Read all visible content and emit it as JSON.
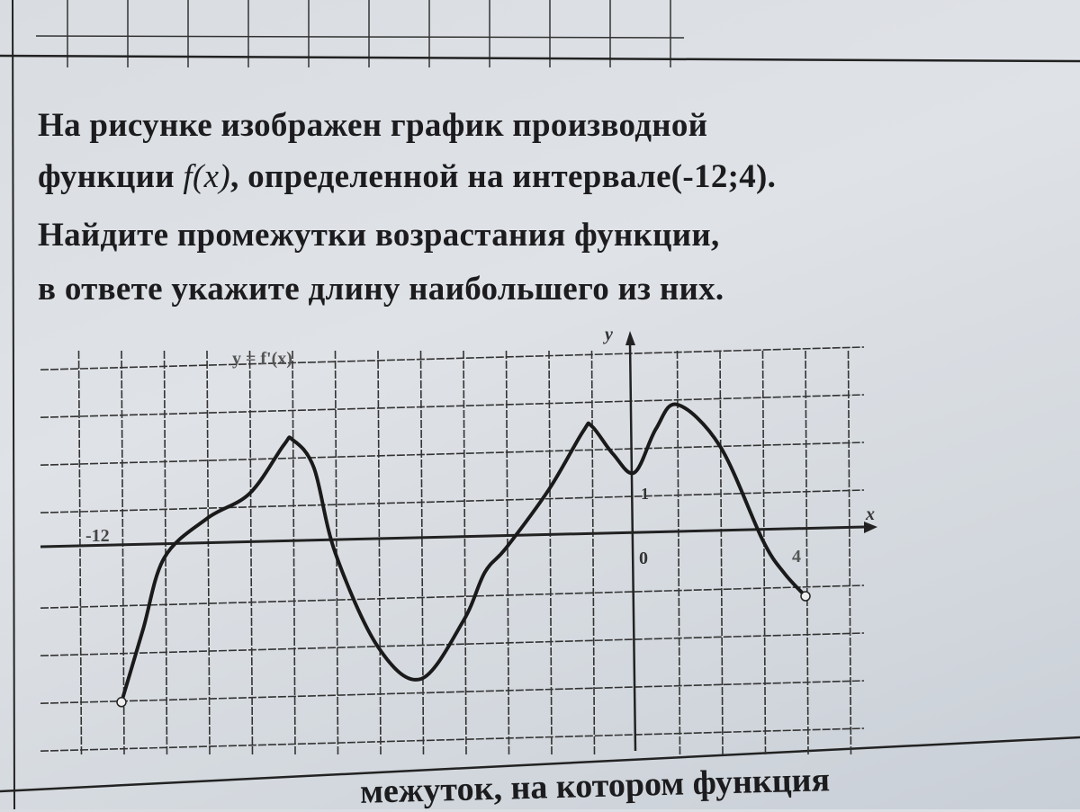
{
  "problem": {
    "line1": "На рисунке изображен график производной",
    "line2_prefix": "функции ",
    "line2_func": "f(x)",
    "line2_suffix": ", определенной на интервале(-12;4).",
    "line3": "Найдите промежутки возрастания функции,",
    "line4": "в ответе укажите длину наибольшего из них."
  },
  "next_problem_fragment": "межуток, на котором функция",
  "chart_data": {
    "type": "line",
    "title": "y = f'(x)",
    "xlabel": "x",
    "ylabel": "y",
    "tick_labels": {
      "x_start": "-12",
      "origin": "0",
      "x_end": "4",
      "y_unit": "1"
    },
    "xlim": [
      -12,
      4
    ],
    "grid": true,
    "series": [
      {
        "x": [
          -12,
          -11.5,
          -11,
          -10,
          -9,
          -8.2,
          -8,
          -7.5,
          -7,
          -6,
          -5,
          -4,
          -3.5,
          -3,
          -2,
          -1.2,
          -1,
          -0.5,
          0,
          0.5,
          1,
          2,
          3,
          3.5,
          4
        ],
        "y": [
          -3,
          -1.5,
          0,
          0.8,
          1.3,
          2.3,
          2.4,
          1.8,
          0,
          -2,
          -2.7,
          -1.5,
          -0.5,
          0,
          1.2,
          2.4,
          2.5,
          1.9,
          1.5,
          2.4,
          2.9,
          2.0,
          0,
          -0.7,
          -1.2
        ]
      }
    ]
  }
}
